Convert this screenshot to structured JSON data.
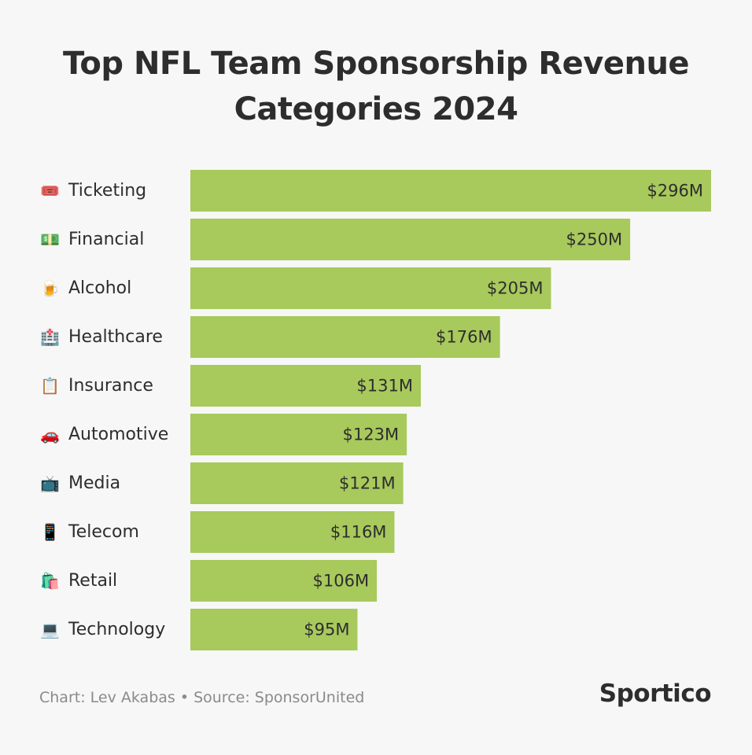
{
  "title": "Top NFL Team Sponsorship Revenue Categories 2024",
  "footer": {
    "credit": "Chart: Lev Akabas • Source: SponsorUnited",
    "logo": "Sportico"
  },
  "colors": {
    "bar": "#a8c95c",
    "background": "#f7f7f7",
    "text": "#2d2d2d"
  },
  "chart_data": {
    "type": "bar",
    "orientation": "horizontal",
    "title": "Top NFL Team Sponsorship Revenue Categories 2024",
    "categories": [
      "Ticketing",
      "Financial",
      "Alcohol",
      "Healthcare",
      "Insurance",
      "Automotive",
      "Media",
      "Telecom",
      "Retail",
      "Technology"
    ],
    "icons": [
      "🎟️",
      "💵",
      "🍺",
      "🏥",
      "📋",
      "🚗",
      "📺",
      "📱",
      "🛍️",
      "💻"
    ],
    "values": [
      296,
      250,
      205,
      176,
      131,
      123,
      121,
      116,
      106,
      95
    ],
    "value_labels": [
      "$296M",
      "$250M",
      "$205M",
      "$176M",
      "$131M",
      "$123M",
      "$121M",
      "$116M",
      "$106M",
      "$95M"
    ],
    "unit": "$M",
    "xlim": [
      0,
      296
    ],
    "grid": false,
    "legend": "none"
  }
}
